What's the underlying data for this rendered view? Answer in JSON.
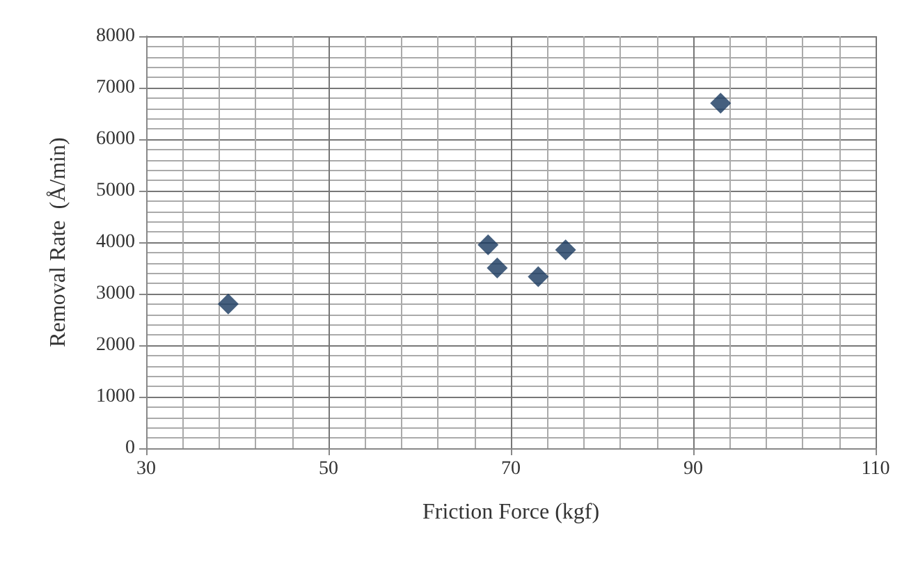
{
  "chart_data": {
    "type": "scatter",
    "xlabel": "Friction Force (kgf)",
    "ylabel": "Removal Rate  (Å/min)",
    "x": [
      39,
      67.5,
      68.5,
      73,
      76,
      93
    ],
    "series": [
      {
        "color": "#17375e",
        "values": [
          2800,
          3950,
          3500,
          3330,
          3850,
          6700
        ]
      }
    ],
    "xlim": [
      30,
      110
    ],
    "xticks": [
      30,
      50,
      70,
      90,
      110
    ],
    "ylim": [
      0,
      8000
    ],
    "yticks": [
      0,
      1000,
      2000,
      3000,
      4000,
      5000,
      6000,
      7000,
      8000
    ],
    "grid": true,
    "marker": "diamond"
  }
}
